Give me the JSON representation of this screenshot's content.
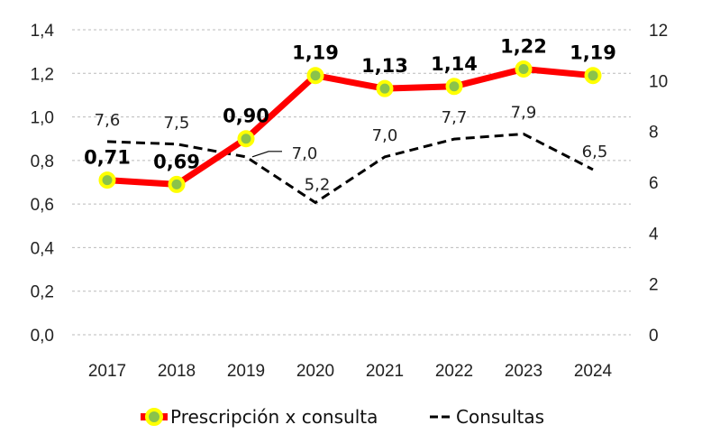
{
  "chart_data": {
    "type": "line",
    "title": "",
    "categories": [
      "2017",
      "2018",
      "2019",
      "2020",
      "2021",
      "2022",
      "2023",
      "2024"
    ],
    "series": [
      {
        "name": "Prescripción x consulta",
        "axis": "left",
        "values": [
          0.71,
          0.69,
          0.9,
          1.19,
          1.13,
          1.14,
          1.22,
          1.19
        ],
        "labels": [
          "0,71",
          "0,69",
          "0,90",
          "1,19",
          "1,13",
          "1,14",
          "1,22",
          "1,19"
        ],
        "color": "#ff0000",
        "marker_fill": "#8bc34a",
        "marker_edge": "#ffff00"
      },
      {
        "name": "Consultas",
        "axis": "right",
        "values": [
          7.6,
          7.5,
          7.0,
          5.2,
          7.0,
          7.7,
          7.9,
          6.5
        ],
        "labels": [
          "7,6",
          "7,5",
          "7,0",
          "5,2",
          "7,0",
          "7,7",
          "7,9",
          "6,5"
        ],
        "color": "#000000",
        "style": "dashed"
      }
    ],
    "y_left": {
      "lim": [
        0,
        1.4
      ],
      "ticks": [
        "0,0",
        "0,2",
        "0,4",
        "0,6",
        "0,8",
        "1,0",
        "1,2",
        "1,4"
      ]
    },
    "y_right": {
      "lim": [
        0,
        12
      ],
      "ticks": [
        "0",
        "2",
        "4",
        "6",
        "8",
        "10",
        "12"
      ]
    },
    "grid": true,
    "legend": "bottom"
  }
}
